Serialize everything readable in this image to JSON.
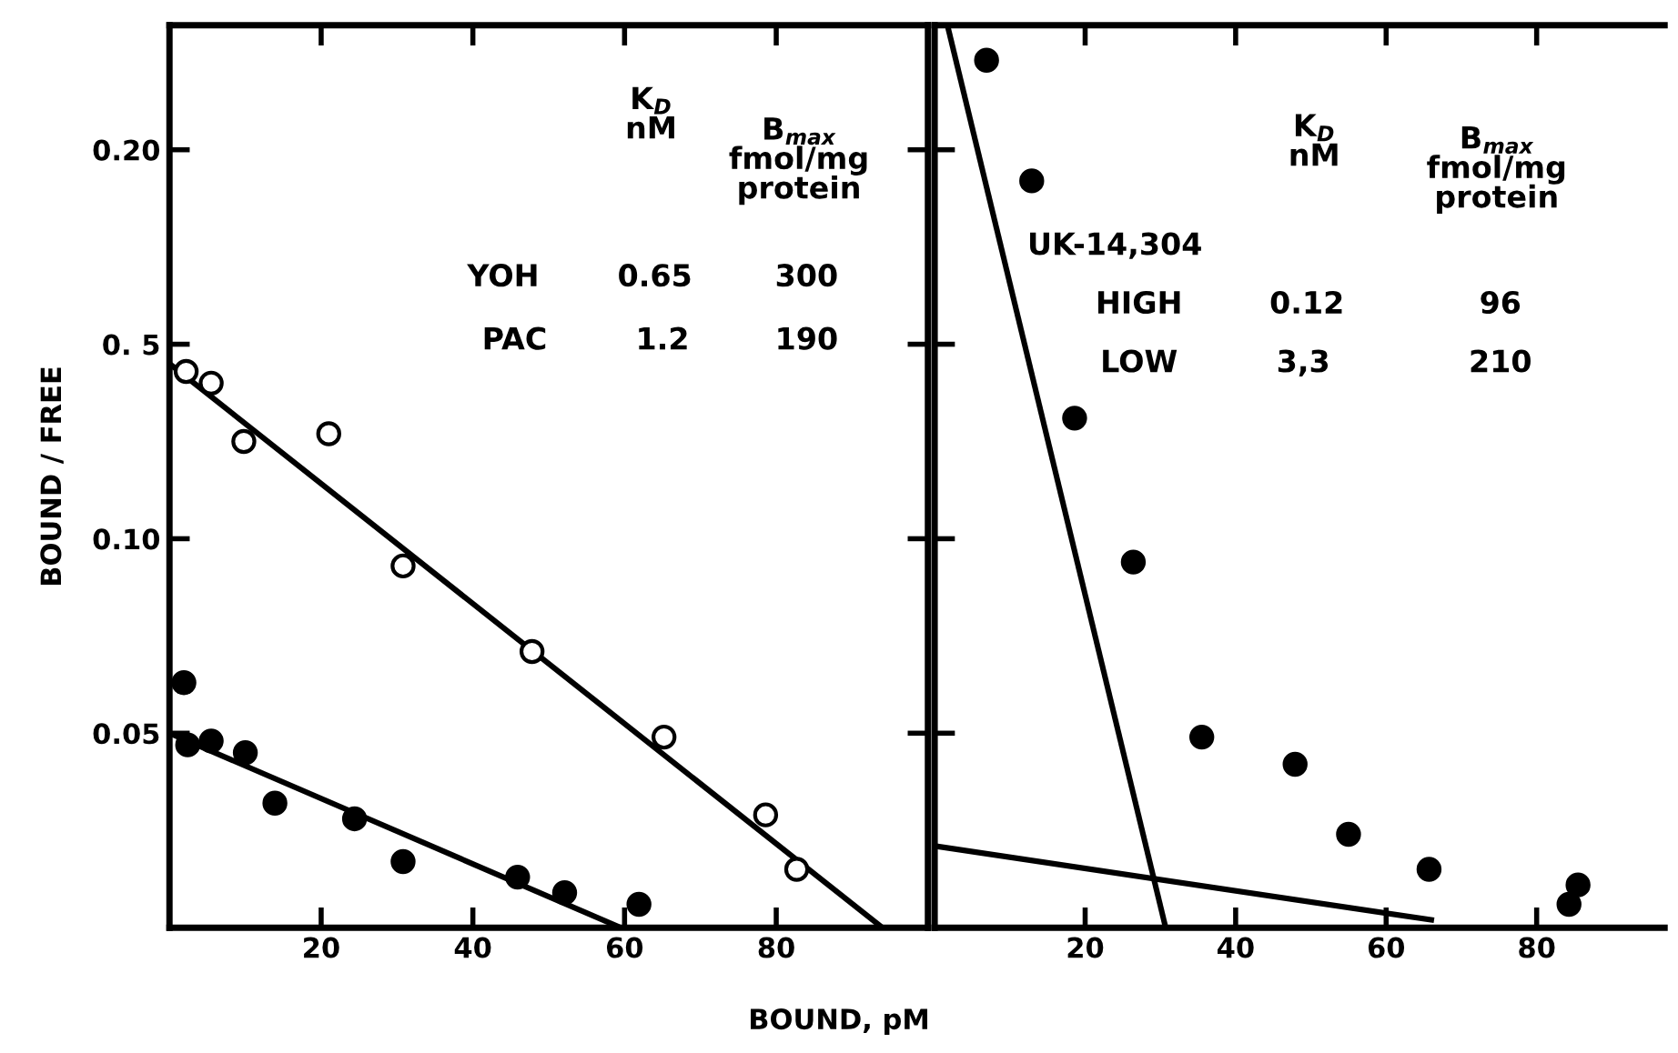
{
  "chart_data": [
    {
      "type": "scatter",
      "ylabel": "BOUND / FREE",
      "xlabel": "BOUND, pM",
      "xlim": [
        0,
        100
      ],
      "xticks": [
        20,
        40,
        60,
        80
      ],
      "ylim": [
        0,
        0.232
      ],
      "yticks": [
        0.05,
        {
          "value": 0.1,
          "label": "0.10"
        },
        {
          "value": 0.15,
          "label": "0. 5"
        },
        {
          "value": 0.2,
          "label": "0.20"
        }
      ],
      "series": [
        {
          "marker": "circle",
          "color": "#ffffff",
          "x": [
            2.2,
            5.5,
            9.8,
            21.0,
            30.8,
            47.8,
            65.2,
            78.6,
            82.7
          ],
          "values": [
            0.143,
            0.14,
            0.125,
            0.127,
            0.093,
            0.071,
            0.049,
            0.029,
            0.015
          ]
        },
        {
          "type": "line",
          "color": "#000000",
          "x": [
            0,
            94
          ],
          "values": [
            0.145,
            0
          ]
        },
        {
          "marker": "circle",
          "color": "#000000",
          "x": [
            1.9,
            2.4,
            5.5,
            10.0,
            13.9,
            24.4,
            30.8,
            45.9,
            52.1,
            61.9
          ],
          "values": [
            0.063,
            0.047,
            0.048,
            0.045,
            0.032,
            0.028,
            0.017,
            0.013,
            0.009,
            0.006
          ]
        },
        {
          "type": "line",
          "color": "#000000",
          "x": [
            0,
            59.5
          ],
          "values": [
            0.05,
            0
          ]
        }
      ],
      "annotations": [
        "K$_{D}$\nnM",
        "B$_{max}$\nfmol/mg\nprotein",
        "YOH",
        "0.65",
        "300",
        "PAC",
        "1.2",
        "190"
      ]
    },
    {
      "type": "scatter",
      "tick_labels": "x",
      "xlim": [
        0,
        97
      ],
      "xticks": [
        20,
        40,
        60,
        80
      ],
      "ylim": [
        0,
        0.232
      ],
      "yticks": [
        0.05,
        0.1,
        0.15,
        0.2
      ],
      "series": [
        {
          "marker": "circle",
          "color": "#000000",
          "x": [
            6.9,
            12.9,
            18.6,
            26.4,
            35.5,
            47.9,
            55.0,
            65.7,
            85.5,
            84.3
          ],
          "values": [
            0.223,
            0.192,
            0.131,
            0.094,
            0.049,
            0.042,
            0.024,
            0.015,
            0.011,
            0.006
          ]
        },
        {
          "type": "line",
          "color": "#000000",
          "x": [
            1.7,
            30.7
          ],
          "values": [
            0.232,
            0
          ]
        },
        {
          "type": "line",
          "color": "#000000",
          "x": [
            0,
            66
          ],
          "values": [
            0.021,
            0.002
          ]
        }
      ],
      "annotations": [
        "K$_{D}$\nnM",
        "B$_{max}$\nfmol/mg\nprotein",
        "UK-14,304",
        "HIGH",
        "0.12",
        "96",
        "LOW",
        "3,3",
        "210"
      ]
    }
  ]
}
